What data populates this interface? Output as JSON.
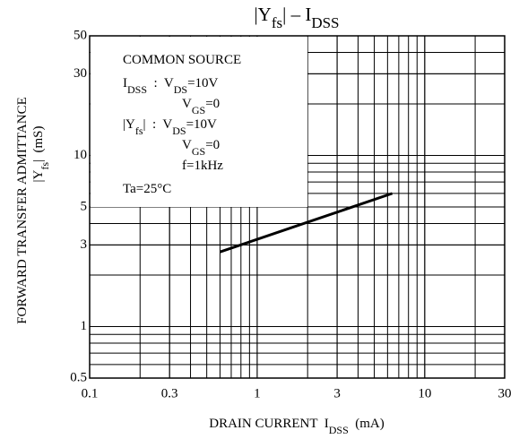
{
  "chart_data": {
    "type": "line",
    "title": [
      {
        "t": "|Y"
      },
      {
        "t": "fs",
        "sub": true
      },
      {
        "t": "| – I"
      },
      {
        "t": "DSS",
        "sub": true
      }
    ],
    "xlabel": [
      {
        "t": "DRAIN CURRENT  I"
      },
      {
        "t": "DSS",
        "sub": true
      },
      {
        "t": "  (mA)"
      }
    ],
    "ylabel": [
      [
        {
          "t": "FORWARD TRANSFER ADMITTANCE"
        }
      ],
      [
        {
          "t": "|Y"
        },
        {
          "t": "fs",
          "sub": true
        },
        {
          "t": "|  (mS)"
        }
      ]
    ],
    "annotations": [
      [
        {
          "t": "COMMON SOURCE"
        }
      ],
      [
        {
          "t": "I"
        },
        {
          "t": "DSS",
          "sub": true
        },
        {
          "t": "  :  V"
        },
        {
          "t": "DS",
          "sub": true
        },
        {
          "t": "=10V"
        }
      ],
      [
        {
          "t": "V"
        },
        {
          "t": "GS",
          "sub": true
        },
        {
          "t": "=0"
        }
      ],
      [
        {
          "t": "|Y"
        },
        {
          "t": "fs",
          "sub": true
        },
        {
          "t": "|  :  V"
        },
        {
          "t": "DS",
          "sub": true
        },
        {
          "t": "=10V"
        }
      ],
      [
        {
          "t": "V"
        },
        {
          "t": "GS",
          "sub": true
        },
        {
          "t": "=0"
        }
      ],
      [
        {
          "t": "f=1kHz"
        }
      ],
      [
        {
          "t": "Ta=25°C"
        }
      ]
    ],
    "x": [
      0.6,
      6.4
    ],
    "series": [
      {
        "color": "#000000",
        "values": [
          2.73,
          6.0
        ]
      }
    ],
    "xlim": [
      0.1,
      30
    ],
    "ylim": [
      0.5,
      50
    ],
    "xticks": [
      0.1,
      0.3,
      1,
      3,
      10,
      30
    ],
    "yticks": [
      0.5,
      1,
      3,
      5,
      10,
      30,
      50
    ],
    "xscale": "log",
    "yscale": "log",
    "grid": true
  }
}
